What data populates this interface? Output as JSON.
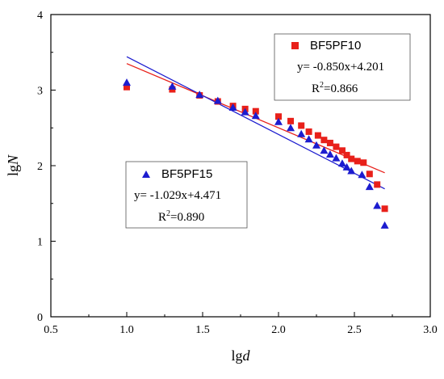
{
  "chart_data": {
    "type": "scatter",
    "title": "",
    "xlabel": {
      "main": "lg",
      "italic": "d"
    },
    "ylabel": {
      "main": "lg",
      "italic": "N"
    },
    "xlim": [
      0.5,
      3.0
    ],
    "ylim": [
      0,
      4
    ],
    "xticks": [
      "0.5",
      "1.0",
      "1.5",
      "2.0",
      "2.5",
      "3.0"
    ],
    "yticks": [
      "0",
      "1",
      "2",
      "3",
      "4"
    ],
    "grid": false,
    "series": [
      {
        "name": "BF5PF10",
        "marker": "square",
        "color": "#e8201a",
        "equation": "y= -0.850x+4.201",
        "r2_prefix": "R",
        "r2_exp": "2",
        "r2_value": "=0.866",
        "fit": {
          "slope": -0.85,
          "intercept": 4.201,
          "x_range": [
            1.0,
            2.7
          ]
        },
        "points": [
          [
            1.0,
            3.04
          ],
          [
            1.3,
            3.01
          ],
          [
            1.48,
            2.93
          ],
          [
            1.6,
            2.85
          ],
          [
            1.7,
            2.79
          ],
          [
            1.78,
            2.75
          ],
          [
            1.85,
            2.72
          ],
          [
            2.0,
            2.65
          ],
          [
            2.08,
            2.59
          ],
          [
            2.15,
            2.53
          ],
          [
            2.2,
            2.45
          ],
          [
            2.26,
            2.4
          ],
          [
            2.3,
            2.34
          ],
          [
            2.34,
            2.3
          ],
          [
            2.38,
            2.25
          ],
          [
            2.42,
            2.2
          ],
          [
            2.45,
            2.14
          ],
          [
            2.48,
            2.09
          ],
          [
            2.52,
            2.06
          ],
          [
            2.56,
            2.04
          ],
          [
            2.6,
            1.89
          ],
          [
            2.65,
            1.75
          ],
          [
            2.7,
            1.43
          ]
        ]
      },
      {
        "name": "BF5PF15",
        "marker": "triangle",
        "color": "#1c1ccf",
        "equation": "y= -1.029x+4.471",
        "r2_prefix": "R",
        "r2_exp": "2",
        "r2_value": "=0.890",
        "fit": {
          "slope": -1.029,
          "intercept": 4.471,
          "x_range": [
            1.0,
            2.7
          ]
        },
        "points": [
          [
            1.0,
            3.1
          ],
          [
            1.3,
            3.05
          ],
          [
            1.48,
            2.94
          ],
          [
            1.6,
            2.86
          ],
          [
            1.7,
            2.77
          ],
          [
            1.78,
            2.71
          ],
          [
            1.85,
            2.66
          ],
          [
            2.0,
            2.58
          ],
          [
            2.08,
            2.5
          ],
          [
            2.15,
            2.42
          ],
          [
            2.2,
            2.35
          ],
          [
            2.25,
            2.27
          ],
          [
            2.3,
            2.2
          ],
          [
            2.34,
            2.15
          ],
          [
            2.38,
            2.1
          ],
          [
            2.42,
            2.03
          ],
          [
            2.45,
            1.98
          ],
          [
            2.48,
            1.93
          ],
          [
            2.55,
            1.88
          ],
          [
            2.6,
            1.72
          ],
          [
            2.65,
            1.47
          ],
          [
            2.7,
            1.21
          ]
        ]
      }
    ],
    "legend_placement": [
      "top-right",
      "middle-left"
    ]
  }
}
